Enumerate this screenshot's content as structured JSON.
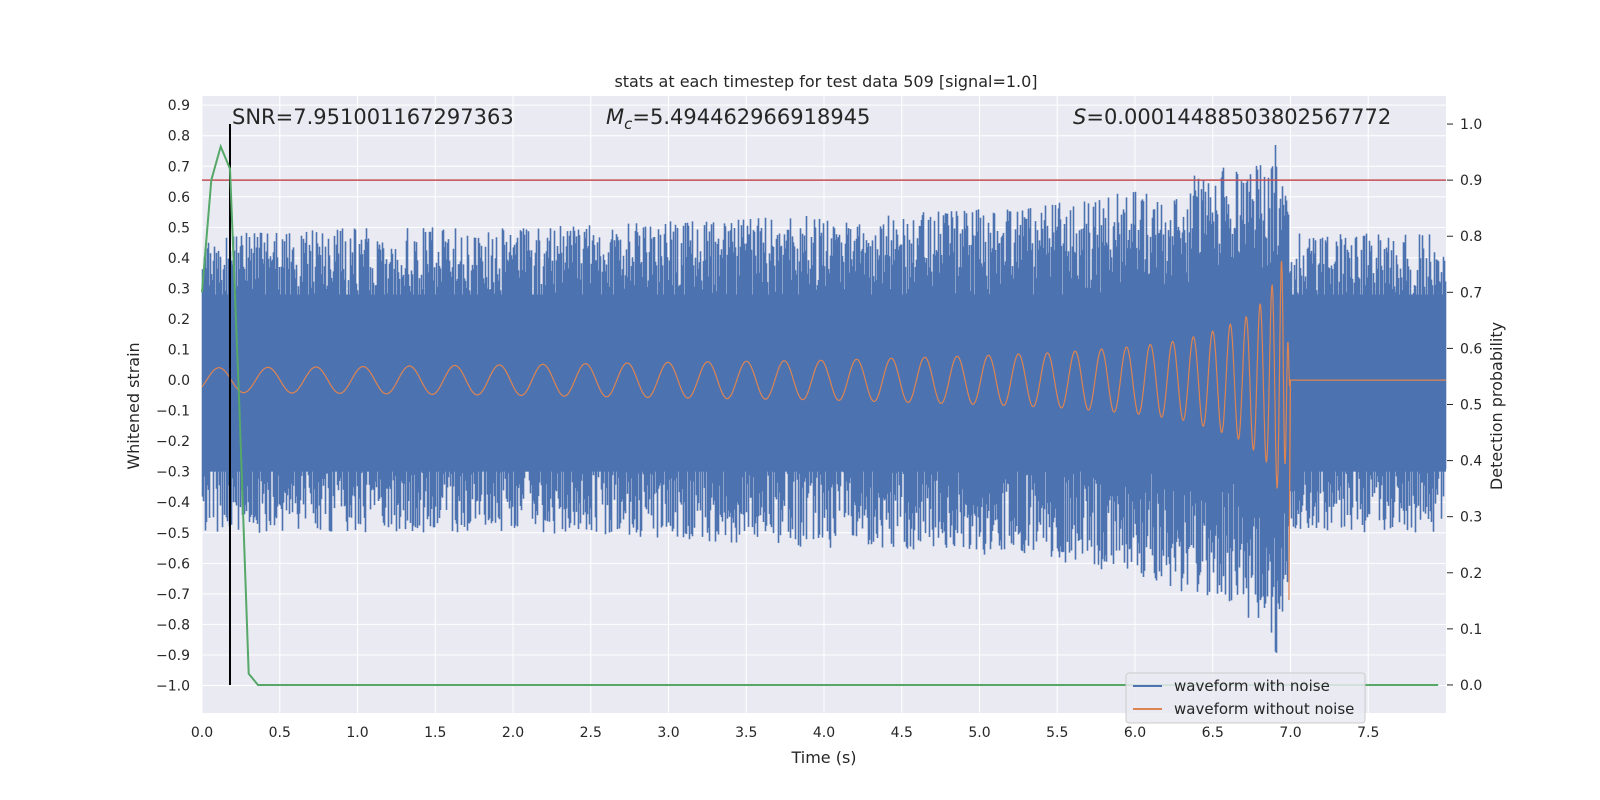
{
  "chart_data": {
    "type": "line",
    "title": "stats at each timestep for test data 509 [signal=1.0]",
    "xlabel": "Time (s)",
    "ylabel": "Whitened strain",
    "y2label": "Detection probability",
    "xlim": [
      0.0,
      8.0
    ],
    "ylim": [
      -1.09,
      0.93
    ],
    "y2lim": [
      -0.05,
      1.05
    ],
    "xticks": [
      0.0,
      0.5,
      1.0,
      1.5,
      2.0,
      2.5,
      3.0,
      3.5,
      4.0,
      4.5,
      5.0,
      5.5,
      6.0,
      6.5,
      7.0,
      7.5
    ],
    "xtick_labels": [
      "0.0",
      "0.5",
      "1.0",
      "1.5",
      "2.0",
      "2.5",
      "3.0",
      "3.5",
      "4.0",
      "4.5",
      "5.0",
      "5.5",
      "6.0",
      "6.5",
      "7.0",
      "7.5"
    ],
    "yticks": [
      0.9,
      0.8,
      0.7,
      0.6,
      0.5,
      0.4,
      0.3,
      0.2,
      0.1,
      0.0,
      -0.1,
      -0.2,
      -0.3,
      -0.4,
      -0.5,
      -0.6,
      -0.7,
      -0.8,
      -0.9,
      -1.0
    ],
    "ytick_labels": [
      "0.9",
      "0.8",
      "0.7",
      "0.6",
      "0.5",
      "0.4",
      "0.3",
      "0.2",
      "0.1",
      "0.0",
      "−0.1",
      "−0.2",
      "−0.3",
      "−0.4",
      "−0.5",
      "−0.6",
      "−0.7",
      "−0.8",
      "−0.9",
      "−1.0"
    ],
    "y2ticks": [
      1.0,
      0.9,
      0.8,
      0.7,
      0.6,
      0.5,
      0.4,
      0.3,
      0.2,
      0.1,
      0.0
    ],
    "y2tick_labels": [
      "1.0",
      "0.9",
      "0.8",
      "0.7",
      "0.6",
      "0.5",
      "0.4",
      "0.3",
      "0.2",
      "0.1",
      "0.0"
    ],
    "annotations": {
      "snr": "SNR=7.951001167297363",
      "mc_symbol": "M",
      "mc_sub": "c",
      "mc_value": "=5.494462966918945",
      "s_symbol": "S",
      "s_value": "=0.00014488503802567772"
    },
    "series": [
      {
        "name": "waveform with noise",
        "color": "#4c72b0",
        "axis": "left",
        "description": "noisy whitened strain",
        "noise_envelope": {
          "x": [
            0.0,
            1.0,
            2.0,
            3.0,
            4.0,
            5.0,
            5.5,
            6.0,
            6.3,
            6.6,
            6.8,
            6.95,
            7.0,
            7.5,
            8.0
          ],
          "upper": [
            0.48,
            0.5,
            0.5,
            0.52,
            0.54,
            0.56,
            0.58,
            0.62,
            0.66,
            0.7,
            0.75,
            0.82,
            0.48,
            0.48,
            0.48
          ],
          "lower": [
            -0.5,
            -0.5,
            -0.5,
            -0.52,
            -0.55,
            -0.57,
            -0.6,
            -0.64,
            -0.7,
            -0.74,
            -0.8,
            -0.95,
            -0.5,
            -0.5,
            -0.5
          ]
        }
      },
      {
        "name": "waveform without noise",
        "color": "#dd8452",
        "axis": "left",
        "description": "chirp signal",
        "amplitude": {
          "x": [
            0.0,
            1.0,
            2.0,
            3.0,
            4.0,
            5.0,
            5.5,
            6.0,
            6.3,
            6.5,
            6.7,
            6.85,
            6.95,
            7.0
          ],
          "values": [
            0.04,
            0.044,
            0.05,
            0.058,
            0.065,
            0.08,
            0.09,
            0.11,
            0.13,
            0.16,
            0.2,
            0.27,
            0.4,
            0.0
          ]
        },
        "merger_time": 7.0
      },
      {
        "name": "detection probability",
        "color": "#55a868",
        "axis": "right",
        "x": [
          0.0,
          0.06,
          0.12,
          0.18,
          0.24,
          0.3,
          0.36,
          0.5,
          1.0,
          2.0,
          3.0,
          4.0,
          5.0,
          6.0,
          7.0,
          7.95
        ],
        "values": [
          0.7,
          0.9,
          0.96,
          0.92,
          0.5,
          0.02,
          0.0,
          0.0,
          0.0,
          0.0,
          0.0,
          0.0,
          0.0,
          0.0,
          0.0,
          0.0
        ]
      }
    ],
    "threshold_line": {
      "axis": "right",
      "value": 0.9,
      "color": "#c44e52"
    },
    "marker_line": {
      "x": 0.18,
      "color": "#000000"
    },
    "legend": {
      "location": "lower-right",
      "entries": [
        {
          "label": "waveform with noise",
          "color": "#4c72b0"
        },
        {
          "label": "waveform without noise",
          "color": "#dd8452"
        }
      ]
    },
    "colors": {
      "background": "#eaeaf2",
      "grid": "#ffffff",
      "text": "#262626"
    }
  }
}
